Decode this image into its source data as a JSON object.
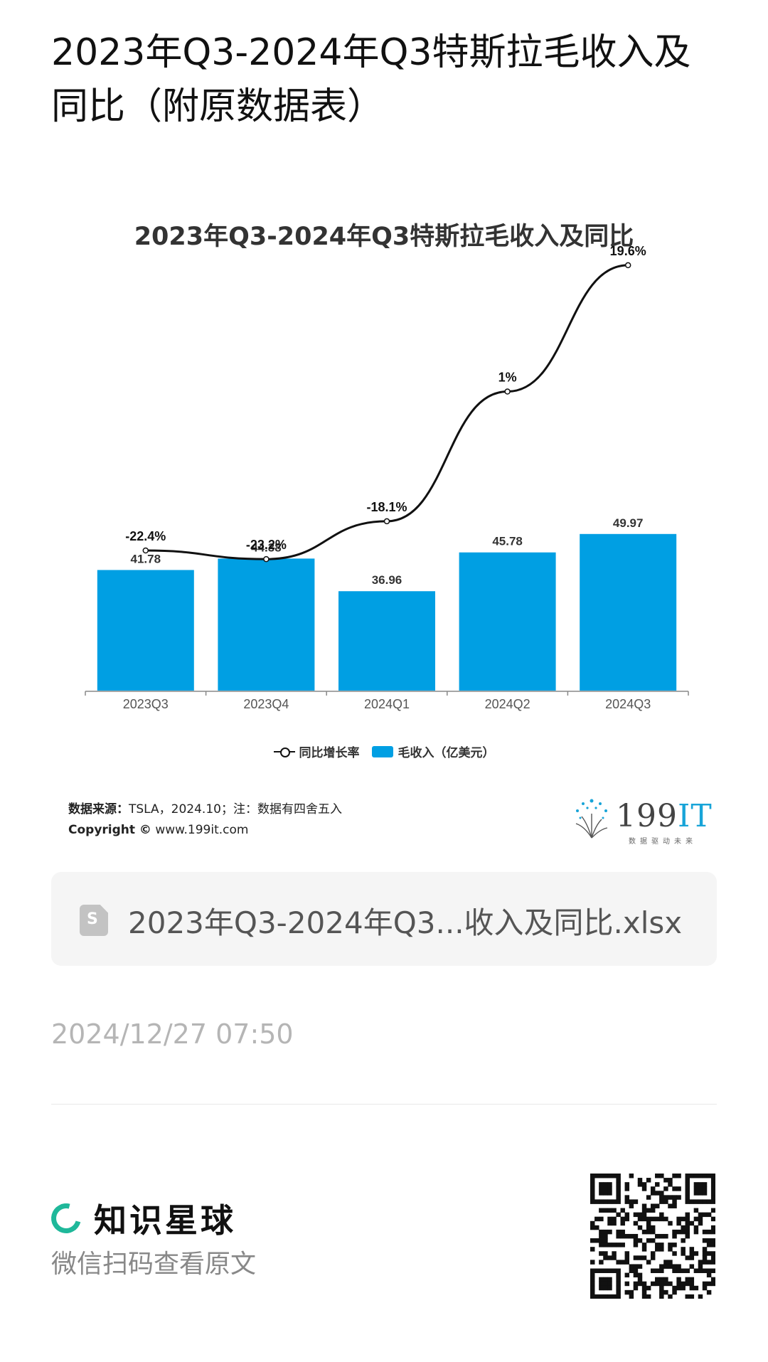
{
  "page": {
    "title": "2023年Q3-2024年Q3特斯拉毛收入及同比（附原数据表）"
  },
  "chart_data": {
    "type": "bar",
    "title": "2023年Q3-2024年Q3特斯拉毛收入及同比",
    "categories": [
      "2023Q3",
      "2023Q4",
      "2024Q1",
      "2024Q2",
      "2024Q3"
    ],
    "series": [
      {
        "name": "毛收入（亿美元）",
        "type": "bar",
        "values": [
          41.78,
          44.38,
          36.96,
          45.78,
          49.97
        ],
        "color": "#009fe3"
      },
      {
        "name": "同比增长率",
        "type": "line",
        "values": [
          -22.4,
          -23.2,
          -18.1,
          1,
          19.6
        ],
        "labels": [
          "-22.4%",
          "-23.2%",
          "-18.1%",
          "1%",
          "19.6%"
        ],
        "color": "#111111"
      }
    ],
    "bar_labels": [
      "41.78",
      "44.38",
      "36.96",
      "45.78",
      "49.97"
    ],
    "legend": [
      "同比增长率",
      "毛收入（亿美元）"
    ],
    "legend_position": "bottom",
    "grid": false
  },
  "source": {
    "label": "数据来源：",
    "text": "TSLA，2024.10；注：数据有四舍五入",
    "copyright_label": "Copyright ©",
    "copyright_url": "www.199it.com"
  },
  "brand": {
    "name_a": "199",
    "name_b": "IT",
    "tagline": "数据驱动未来"
  },
  "file": {
    "icon": "spreadsheet-file-icon",
    "icon_letter": "S",
    "name": "2023年Q3-2024年Q3...收入及同比.xlsx"
  },
  "timestamp": "2024/12/27 07:50",
  "footer": {
    "app_name": "知识星球",
    "cta": "微信扫码查看原文",
    "accent": "#1fb89a"
  }
}
